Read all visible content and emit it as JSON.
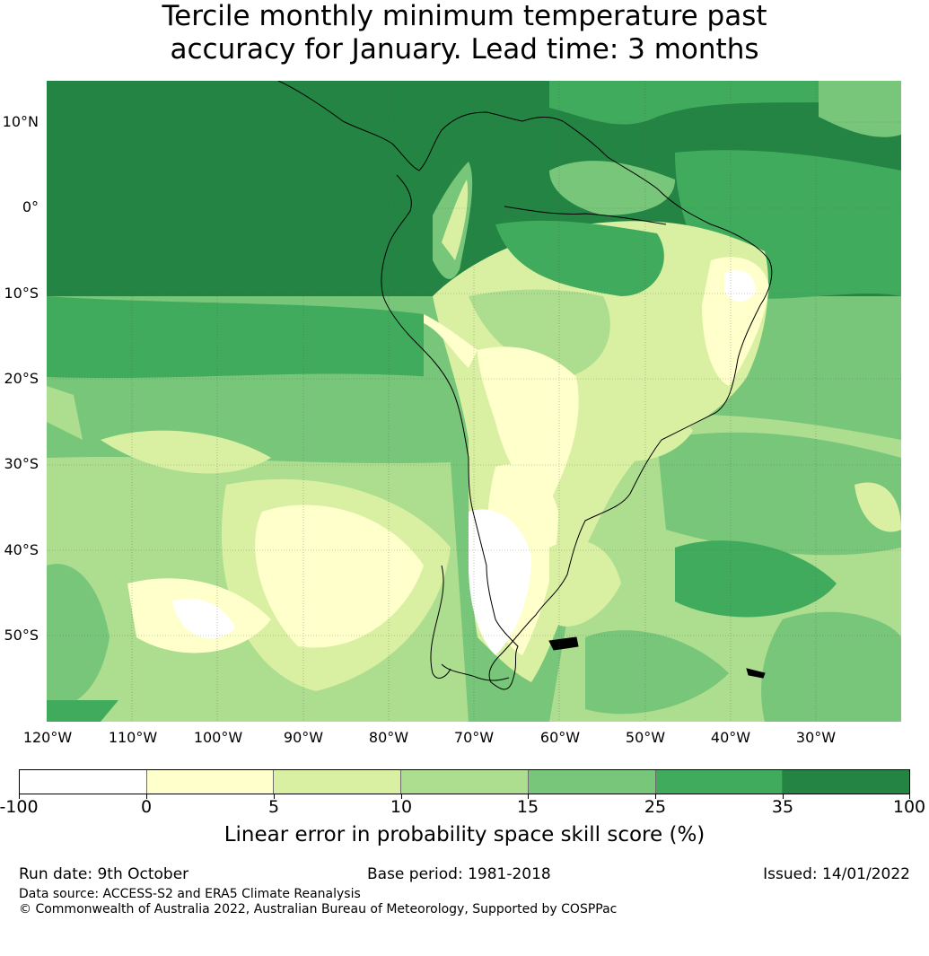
{
  "title": {
    "line1": "Tercile monthly minimum temperature past",
    "line2": "accuracy for January. Lead time: 3 months"
  },
  "map": {
    "region": "South America",
    "lat_labels": [
      "10°N",
      "0°",
      "10°S",
      "20°S",
      "30°S",
      "40°S",
      "50°S"
    ],
    "lon_labels": [
      "120°W",
      "110°W",
      "100°W",
      "90°W",
      "80°W",
      "70°W",
      "60°W",
      "50°W",
      "40°W",
      "30°W"
    ]
  },
  "colorbar": {
    "ticks": [
      "-100",
      "0",
      "5",
      "10",
      "15",
      "25",
      "35",
      "100"
    ],
    "colors": [
      "#ffffff",
      "#ffffcc",
      "#d9f0a3",
      "#addd8e",
      "#78c679",
      "#41ab5d",
      "#238443"
    ],
    "label": "Linear error in probability space skill score (%)"
  },
  "footer": {
    "run_date": "Run date: 9th October",
    "base_period": "Base period: 1981-2018",
    "issued": "Issued: 14/01/2022",
    "data_source": "Data source: ACCESS-S2 and ERA5 Climate Reanalysis",
    "copyright": "© Commonwealth of Australia 2022, Australian Bureau of Meteorology, Supported by COSPPac"
  }
}
